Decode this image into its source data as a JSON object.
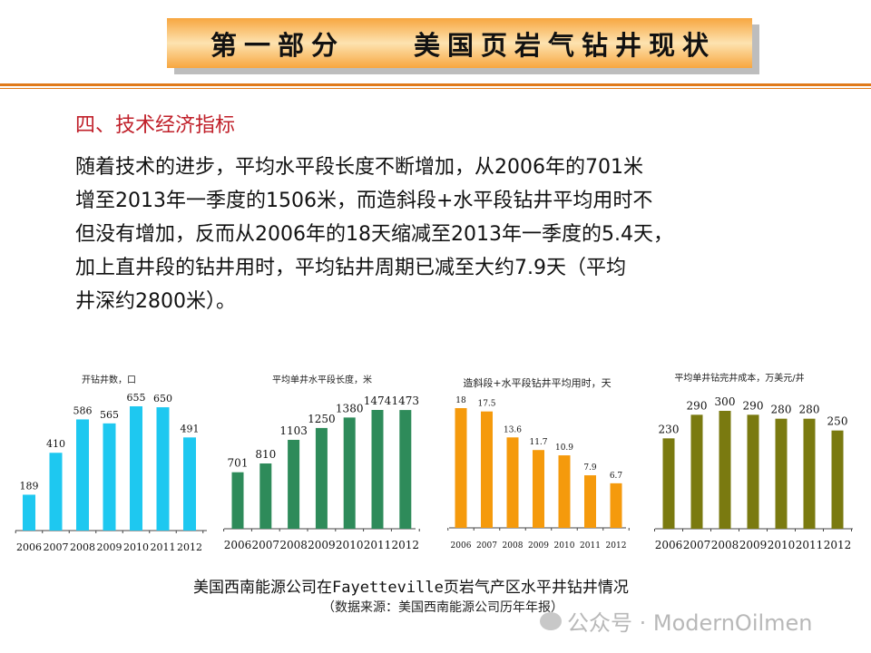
{
  "header": {
    "part": "第一部分",
    "title": "美国页岩气钻井现状"
  },
  "section_heading": "四、技术经济指标",
  "body_lines": [
    "随着技术的进步，平均水平段长度不断增加，从2006年的701米",
    "增至2013年一季度的1506米，而造斜段+水平段钻井平均用时不",
    "但没有增加，反而从2006年的18天缩减至2013年一季度的5.4天，",
    "加上直井段的钻井用时，平均钻井周期已减至大约7.9天（平均",
    "井深约2800米）。"
  ],
  "caption": "美国西南能源公司在Fayetteville页岩气产区水平井钻井情况",
  "source": "（数据来源：美国西南能源公司历年年报）",
  "watermark": "公众号 · ModernOilmen",
  "chart_data": [
    {
      "type": "bar",
      "title": "开钻井数，口",
      "categories": [
        "2006",
        "2007",
        "2008",
        "2009",
        "2010",
        "2011",
        "2012"
      ],
      "values": [
        189,
        410,
        586,
        565,
        655,
        650,
        491
      ],
      "labels": [
        "189",
        "410",
        "586",
        "565",
        "655",
        "650",
        "491"
      ],
      "color": "#1ec8f0",
      "ylim": [
        0,
        700
      ]
    },
    {
      "type": "bar",
      "title": "平均单井水平段长度，米",
      "categories": [
        "2006",
        "2007",
        "2008",
        "2009",
        "2010",
        "2011",
        "2012"
      ],
      "values": [
        701,
        810,
        1103,
        1250,
        1380,
        1474,
        1473
      ],
      "labels": [
        "701",
        "810",
        "1103",
        "1250",
        "1380",
        "1474",
        "1473"
      ],
      "color": "#2e8b5a",
      "ylim": [
        0,
        1550
      ]
    },
    {
      "type": "bar",
      "title": "造斜段+水平段钻井平均用时，天",
      "categories": [
        "2006",
        "2007",
        "2008",
        "2009",
        "2010",
        "2011",
        "2012"
      ],
      "values": [
        18,
        17.5,
        13.6,
        11.7,
        10.9,
        7.9,
        6.7
      ],
      "labels": [
        "18",
        "17.5",
        "13.6",
        "11.7",
        "10.9",
        "7.9",
        "6.7"
      ],
      "color": "#f59a0c",
      "ylim": [
        0,
        19
      ]
    },
    {
      "type": "bar",
      "title": "平均单井钻完井成本，万美元/井",
      "categories": [
        "2006",
        "2007",
        "2008",
        "2009",
        "2010",
        "2011",
        "2012"
      ],
      "values": [
        230,
        290,
        300,
        290,
        280,
        280,
        250
      ],
      "labels": [
        "230",
        "290",
        "300",
        "290",
        "280",
        "280",
        "250"
      ],
      "color": "#7a7a10",
      "ylim": [
        0,
        320
      ]
    }
  ]
}
